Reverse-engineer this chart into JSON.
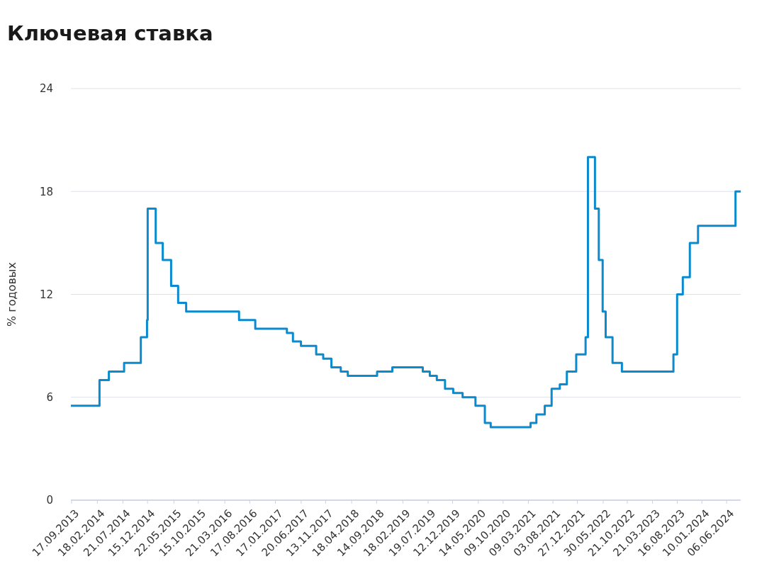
{
  "chart_data": {
    "type": "step",
    "title": "Ключевая ставка",
    "ylabel": "% годовых",
    "x": [
      "2013-09-13",
      "2014-03-03",
      "2014-04-28",
      "2014-07-28",
      "2014-11-05",
      "2014-12-12",
      "2014-12-16",
      "2015-02-02",
      "2015-03-16",
      "2015-05-05",
      "2015-06-16",
      "2015-08-03",
      "2016-06-14",
      "2016-09-19",
      "2017-03-27",
      "2017-05-02",
      "2017-06-19",
      "2017-09-18",
      "2017-10-30",
      "2017-12-18",
      "2018-02-12",
      "2018-03-26",
      "2018-09-17",
      "2018-12-17",
      "2019-06-17",
      "2019-07-29",
      "2019-09-09",
      "2019-10-28",
      "2019-12-16",
      "2020-02-10",
      "2020-04-27",
      "2020-06-22",
      "2020-07-27",
      "2021-03-22",
      "2021-04-26",
      "2021-06-15",
      "2021-07-26",
      "2021-09-13",
      "2021-10-25",
      "2021-12-20",
      "2022-02-14",
      "2022-02-28",
      "2022-04-11",
      "2022-05-04",
      "2022-05-27",
      "2022-06-14",
      "2022-07-25",
      "2022-09-19",
      "2023-07-24",
      "2023-08-15",
      "2023-09-18",
      "2023-10-30",
      "2023-12-18",
      "2024-07-29",
      "2024-08-29"
    ],
    "series": [
      {
        "color": "#0a8bd0",
        "values": [
          5.5,
          7,
          7.5,
          8,
          9.5,
          10.5,
          17,
          15,
          14,
          12.5,
          11.5,
          11,
          10.5,
          10,
          9.75,
          9.25,
          9,
          8.5,
          8.25,
          7.75,
          7.5,
          7.25,
          7.5,
          7.75,
          7.5,
          7.25,
          7,
          6.5,
          6.25,
          6,
          5.5,
          4.5,
          4.25,
          4.5,
          5,
          5.5,
          6.5,
          6.75,
          7.5,
          8.5,
          9.5,
          20,
          17,
          14,
          11,
          9.5,
          8,
          7.5,
          8.5,
          12,
          13,
          15,
          16,
          18,
          18
        ]
      }
    ],
    "xlim": [
      "2013-09-13",
      "2024-08-29"
    ],
    "xticks": [
      {
        "value": "2013-09-17",
        "label": "17.09.2013"
      },
      {
        "value": "2014-02-18",
        "label": "18.02.2014"
      },
      {
        "value": "2014-07-21",
        "label": "21.07.2014"
      },
      {
        "value": "2014-12-15",
        "label": "15.12.2014"
      },
      {
        "value": "2015-05-22",
        "label": "22.05.2015"
      },
      {
        "value": "2015-10-15",
        "label": "15.10.2015"
      },
      {
        "value": "2016-03-21",
        "label": "21.03.2016"
      },
      {
        "value": "2016-08-17",
        "label": "17.08.2016"
      },
      {
        "value": "2017-01-17",
        "label": "17.01.2017"
      },
      {
        "value": "2017-06-20",
        "label": "20.06.2017"
      },
      {
        "value": "2017-11-13",
        "label": "13.11.2017"
      },
      {
        "value": "2018-04-18",
        "label": "18.04.2018"
      },
      {
        "value": "2018-09-14",
        "label": "14.09.2018"
      },
      {
        "value": "2019-02-18",
        "label": "18.02.2019"
      },
      {
        "value": "2019-07-19",
        "label": "19.07.2019"
      },
      {
        "value": "2019-12-12",
        "label": "12.12.2019"
      },
      {
        "value": "2020-05-14",
        "label": "14.05.2020"
      },
      {
        "value": "2020-10-09",
        "label": "09.10.2020"
      },
      {
        "value": "2021-03-09",
        "label": "09.03.2021"
      },
      {
        "value": "2021-08-03",
        "label": "03.08.2021"
      },
      {
        "value": "2021-12-27",
        "label": "27.12.2021"
      },
      {
        "value": "2022-05-30",
        "label": "30.05.2022"
      },
      {
        "value": "2022-10-21",
        "label": "21.10.2022"
      },
      {
        "value": "2023-03-21",
        "label": "21.03.2023"
      },
      {
        "value": "2023-08-16",
        "label": "16.08.2023"
      },
      {
        "value": "2024-01-10",
        "label": "10.01.2024"
      },
      {
        "value": "2024-06-06",
        "label": "06.06.2024"
      }
    ],
    "ylim": [
      0,
      24
    ],
    "yticks": [
      0,
      6,
      12,
      18,
      24
    ],
    "grid": "y",
    "marker": "none",
    "line_style": "solid"
  }
}
